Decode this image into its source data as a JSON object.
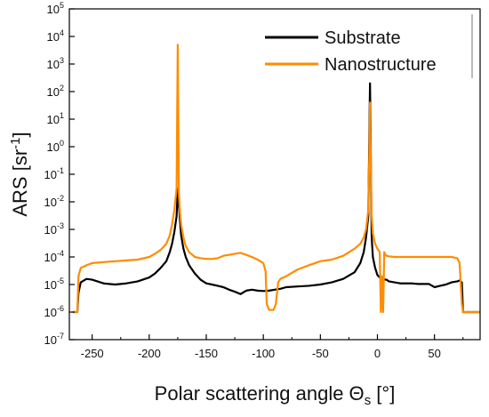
{
  "chart_data": {
    "type": "line",
    "title": "",
    "xlabel": "Polar scattering angle Θ",
    "xlabel_sub": "s",
    "xlabel_unit": " [°]",
    "ylabel": "ARS [sr",
    "ylabel_sup": "-1",
    "ylabel_end": "]",
    "xlim": [
      -270,
      90
    ],
    "ylim_exp": [
      -7,
      5
    ],
    "yscale": "log",
    "x_ticks": [
      -250,
      -200,
      -150,
      -100,
      -50,
      0,
      50
    ],
    "x_tick_labels": [
      "-250",
      "-200",
      "-150",
      "-100",
      "-50",
      "0",
      "50"
    ],
    "y_tick_base": "10",
    "y_tick_exponents": [
      "-7",
      "-6",
      "-5",
      "-4",
      "-3",
      "-2",
      "-1",
      "0",
      "1",
      "2",
      "3",
      "4",
      "5"
    ],
    "grid": false,
    "legend_position": "top-right",
    "series": [
      {
        "name": "Substrate",
        "color": "#000000",
        "x": [
          -267,
          -265,
          -263,
          -262,
          -260,
          -255,
          -250,
          -240,
          -230,
          -220,
          -210,
          -200,
          -195,
          -190,
          -185,
          -182,
          -180,
          -178,
          -176,
          -175,
          -174,
          -173,
          -172,
          -170,
          -168,
          -165,
          -160,
          -155,
          -150,
          -145,
          -140,
          -135,
          -130,
          -125,
          -120,
          -115,
          -110,
          -105,
          -100,
          -95,
          -90,
          -85,
          -80,
          -70,
          -60,
          -50,
          -40,
          -30,
          -20,
          -15,
          -12,
          -10,
          -8,
          -7,
          -6.5,
          -6,
          -5.5,
          -5,
          -4,
          -2,
          0,
          2,
          3,
          5,
          7,
          8,
          10,
          15,
          20,
          25,
          30,
          35,
          40,
          45,
          48,
          50,
          55,
          60,
          65,
          70,
          72,
          74,
          75,
          77,
          80,
          85,
          90
        ],
        "y": [
          1e-06,
          1e-06,
          1e-06,
          5e-06,
          1.2e-05,
          1.6e-05,
          1.5e-05,
          1.1e-05,
          1e-05,
          1.1e-05,
          1.3e-05,
          1.8e-05,
          2.5e-05,
          4e-05,
          7e-05,
          0.00015,
          0.0003,
          0.0008,
          0.003,
          0.03,
          0.008,
          0.002,
          0.0006,
          0.0002,
          0.0001,
          5e-05,
          2.5e-05,
          1.5e-05,
          1.1e-05,
          1e-05,
          9e-06,
          8e-06,
          6.5e-06,
          5.5e-06,
          4.5e-06,
          6e-06,
          6.5e-06,
          6e-06,
          5.8e-06,
          6e-06,
          6.5e-06,
          7e-06,
          8e-06,
          8.5e-06,
          9e-06,
          1e-05,
          1.2e-05,
          1.6e-05,
          2.8e-05,
          6e-05,
          0.00015,
          0.0005,
          0.003,
          5,
          200,
          5,
          0.02,
          0.0005,
          0.0001,
          4e-05,
          2.2e-05,
          1.8e-05,
          1.6e-05,
          1.6e-05,
          1.5e-05,
          1.5e-05,
          1.3e-05,
          1.2e-05,
          1.1e-05,
          1.1e-05,
          1.1e-05,
          1.05e-05,
          1.05e-05,
          1.05e-05,
          9e-06,
          8e-06,
          9e-06,
          1e-05,
          1.2e-05,
          1.3e-05,
          1.4e-05,
          1.2e-05,
          1e-06,
          1e-06,
          1e-06,
          1e-06,
          1e-06
        ]
      },
      {
        "name": "Nanostructure",
        "color": "#ff8c00",
        "x": [
          -267,
          -265,
          -263,
          -262,
          -260,
          -255,
          -250,
          -240,
          -230,
          -220,
          -210,
          -200,
          -195,
          -190,
          -185,
          -182,
          -180,
          -178,
          -176,
          -175,
          -174,
          -173,
          -172,
          -170,
          -168,
          -165,
          -160,
          -155,
          -150,
          -145,
          -140,
          -135,
          -130,
          -125,
          -120,
          -115,
          -110,
          -105,
          -100,
          -98,
          -97,
          -95,
          -93,
          -91,
          -89,
          -88,
          -87,
          -85,
          -80,
          -70,
          -60,
          -50,
          -40,
          -30,
          -20,
          -15,
          -12,
          -10,
          -8,
          -7,
          -6.5,
          -6,
          -5.5,
          -5,
          -4,
          -2,
          0,
          2,
          3,
          4,
          5,
          6,
          7,
          8,
          10,
          15,
          20,
          30,
          40,
          50,
          60,
          65,
          70,
          72,
          74,
          75,
          77,
          80,
          85,
          90
        ],
        "y": [
          1e-06,
          1e-06,
          1e-06,
          2e-05,
          4e-05,
          5e-05,
          6e-05,
          6.5e-05,
          7e-05,
          7.5e-05,
          8e-05,
          0.0001,
          0.00013,
          0.00018,
          0.0003,
          0.0006,
          0.0015,
          0.005,
          0.03,
          5000,
          0.02,
          0.004,
          0.0015,
          0.0005,
          0.00025,
          0.00015,
          0.0001,
          9e-05,
          8.5e-05,
          8.5e-05,
          9e-05,
          0.00011,
          0.00012,
          0.00013,
          0.00014,
          0.00012,
          0.0001,
          8e-05,
          6e-05,
          3e-05,
          2e-06,
          1.2e-06,
          1.2e-06,
          1.2e-06,
          2e-06,
          5e-06,
          1.2e-05,
          1.6e-05,
          2e-05,
          3.5e-05,
          5e-05,
          7e-05,
          8e-05,
          0.00011,
          0.0002,
          0.0003,
          0.0005,
          0.001,
          0.005,
          1,
          40,
          1,
          0.05,
          0.003,
          0.0007,
          0.0003,
          0.0002,
          0.00015,
          1e-06,
          2e-05,
          1e-06,
          0.00015,
          0.00012,
          0.00011,
          0.000105,
          0.0001,
          0.0001,
          0.0001,
          0.0001,
          0.0001,
          0.0001,
          0.0001,
          9e-05,
          6e-05,
          2e-06,
          1e-06,
          1e-06,
          1e-06,
          1e-06,
          1e-06
        ]
      }
    ]
  }
}
